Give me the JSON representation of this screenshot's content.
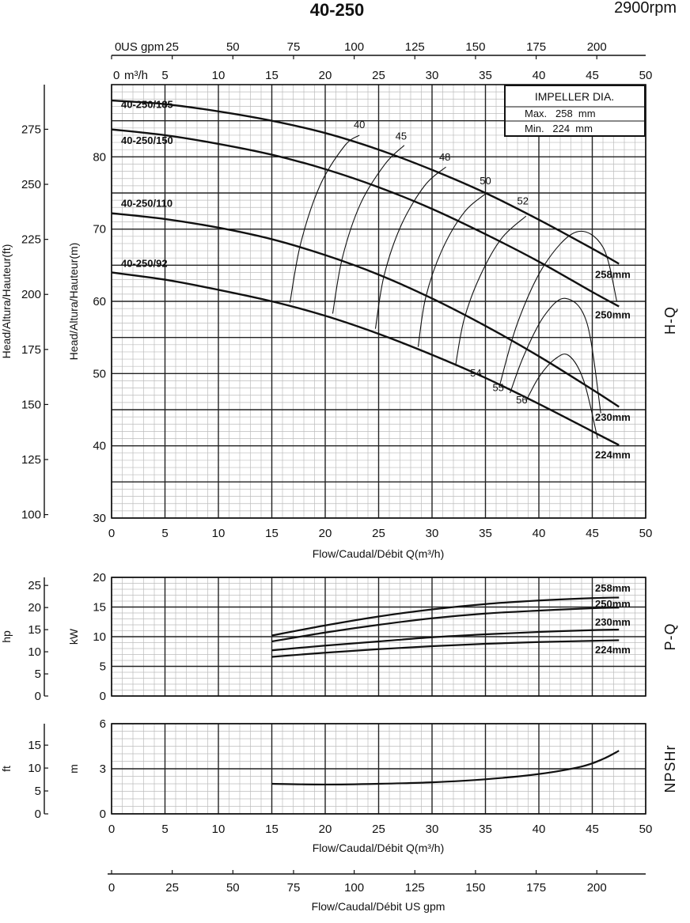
{
  "title": "40-250",
  "speed": "2900rpm",
  "impeller": {
    "title": "IMPELLER DIA.",
    "max": "Max.   258  mm",
    "min": "Min.   224  mm"
  },
  "colors": {
    "curve": "#111111",
    "grid": "#222222",
    "minor_grid": "#bcbcbc"
  },
  "chart_data": [
    {
      "type": "line",
      "name": "H-Q",
      "side_label": "H-Q",
      "x_unit_label": "m³/h",
      "top_gpm_label": "US gpm",
      "xlabel": "Flow/Caudal/Débit Q(m³/h)",
      "ylabel_m": "Head/Altura/Hauteur(m)",
      "ylabel_ft": "Head/Altura/Hauteur(ft)",
      "xlim": [
        0,
        50
      ],
      "ylim": [
        30,
        90
      ],
      "x_ticks": [
        0,
        5,
        10,
        15,
        20,
        25,
        30,
        35,
        40,
        45,
        50
      ],
      "y_ticks": [
        30,
        40,
        50,
        60,
        70,
        80
      ],
      "gpm_ticks": [
        0,
        25,
        50,
        75,
        100,
        125,
        150,
        175,
        200
      ],
      "ft_ticks": [
        100,
        125,
        150,
        175,
        200,
        225,
        250,
        275
      ],
      "series": [
        {
          "name": "258mm",
          "x": [
            0,
            5,
            10,
            15,
            20,
            25,
            30,
            35,
            40,
            45,
            47.5
          ],
          "y": [
            87.8,
            87.3,
            86.3,
            85.0,
            83.3,
            81.0,
            78.2,
            75.0,
            71.3,
            67.3,
            65.2
          ]
        },
        {
          "name": "250mm",
          "x": [
            0,
            5,
            10,
            15,
            20,
            25,
            30,
            35,
            40,
            45,
            47.5
          ],
          "y": [
            83.8,
            83.0,
            81.8,
            80.3,
            78.3,
            75.8,
            72.8,
            69.3,
            65.5,
            61.3,
            59.3
          ]
        },
        {
          "name": "230mm",
          "x": [
            0,
            5,
            10,
            15,
            20,
            25,
            30,
            35,
            40,
            45,
            47.5
          ],
          "y": [
            72.2,
            71.4,
            70.2,
            68.6,
            66.4,
            63.7,
            60.4,
            56.6,
            52.4,
            47.8,
            45.4
          ]
        },
        {
          "name": "224mm",
          "x": [
            0,
            5,
            10,
            15,
            20,
            25,
            30,
            35,
            40,
            45,
            47.5
          ],
          "y": [
            64.0,
            63.0,
            61.6,
            60.0,
            58.0,
            55.5,
            52.6,
            49.4,
            45.8,
            42.0,
            40.1
          ]
        }
      ],
      "impeller_labels": [
        "40-250/185",
        "40-250/150",
        "40-250/110",
        "40-250/92"
      ],
      "efficiency_curves": [
        {
          "label": "40",
          "x": [
            16.7,
            17.7,
            19.5,
            21.8,
            23.2
          ],
          "y": [
            59.8,
            68.0,
            76.0,
            81.5,
            83.0
          ]
        },
        {
          "label": "45",
          "x": [
            20.7,
            21.6,
            23.3,
            25.6,
            27.4
          ],
          "y": [
            58.3,
            66.0,
            73.5,
            79.0,
            81.6
          ]
        },
        {
          "label": "48",
          "x": [
            24.7,
            25.5,
            27.1,
            29.3,
            31.3
          ],
          "y": [
            56.2,
            63.5,
            70.5,
            76.0,
            78.6
          ]
        },
        {
          "label": "50",
          "x": [
            28.7,
            29.4,
            30.9,
            33.0,
            35.2
          ],
          "y": [
            53.7,
            60.5,
            67.0,
            72.3,
            75.1
          ]
        },
        {
          "label": "52",
          "x": [
            32.2,
            33.0,
            34.5,
            36.5,
            38.8
          ],
          "y": [
            51.1,
            57.5,
            63.5,
            68.7,
            71.8
          ]
        },
        {
          "label": "54",
          "x": [
            36.3,
            38.0,
            40.5,
            43.5,
            46.0,
            47.3
          ],
          "y": [
            48.2,
            57.0,
            65.0,
            69.6,
            67.5,
            60.0
          ]
        },
        {
          "label": "55",
          "x": [
            37.3,
            38.6,
            40.5,
            42.5,
            44.5,
            45.8
          ],
          "y": [
            47.3,
            52.5,
            58.0,
            60.4,
            57.0,
            44.5
          ]
        },
        {
          "label": "56",
          "x": [
            38.8,
            40.0,
            41.5,
            42.8,
            44.2,
            45.5
          ],
          "y": [
            46.2,
            49.5,
            52.0,
            52.5,
            49.0,
            41.0
          ]
        }
      ],
      "efficiency_labels": [
        "40",
        "45",
        "48",
        "50",
        "52",
        "54",
        "55",
        "56"
      ]
    },
    {
      "type": "line",
      "name": "P-Q",
      "side_label": "P-Q",
      "ylabel_kw": "kW",
      "ylabel_hp": "hp",
      "xlim": [
        0,
        50
      ],
      "ylim": [
        0,
        20
      ],
      "y_ticks": [
        0,
        5,
        10,
        15,
        20
      ],
      "hp_ticks": [
        0,
        5,
        10,
        15,
        20,
        25
      ],
      "series": [
        {
          "name": "258mm",
          "x": [
            15,
            20,
            25,
            30,
            35,
            40,
            45,
            47.5
          ],
          "y": [
            10.2,
            11.9,
            13.4,
            14.6,
            15.5,
            16.1,
            16.5,
            16.6
          ]
        },
        {
          "name": "250mm",
          "x": [
            15,
            20,
            25,
            30,
            35,
            40,
            45,
            47.5
          ],
          "y": [
            9.2,
            10.7,
            12.0,
            13.1,
            13.9,
            14.4,
            14.8,
            14.9
          ]
        },
        {
          "name": "230mm",
          "x": [
            15,
            20,
            25,
            30,
            35,
            40,
            45,
            47.5
          ],
          "y": [
            7.7,
            8.5,
            9.2,
            9.9,
            10.4,
            10.8,
            11.1,
            11.2
          ]
        },
        {
          "name": "224mm",
          "x": [
            15,
            20,
            25,
            30,
            35,
            40,
            45,
            47.5
          ],
          "y": [
            6.6,
            7.3,
            7.9,
            8.4,
            8.8,
            9.1,
            9.3,
            9.4
          ]
        }
      ],
      "series_labels": [
        "258mm",
        "250mm",
        "230mm",
        "224mm"
      ]
    },
    {
      "type": "line",
      "name": "NPSHr",
      "side_label": "NPSHr",
      "ylabel_m": "m",
      "ylabel_ft": "ft",
      "xlim": [
        0,
        50
      ],
      "ylim": [
        0,
        6
      ],
      "y_ticks": [
        0,
        3,
        6
      ],
      "ft_ticks": [
        0,
        5,
        10,
        15
      ],
      "x_ticks": [
        0,
        5,
        10,
        15,
        20,
        25,
        30,
        35,
        40,
        45,
        50
      ],
      "xlabel": "Flow/Caudal/Débit Q(m³/h)",
      "series": [
        {
          "name": "NPSHr",
          "x": [
            15,
            20,
            25,
            30,
            35,
            40,
            44,
            46,
            47.5
          ],
          "y": [
            2.0,
            1.95,
            2.0,
            2.1,
            2.3,
            2.65,
            3.15,
            3.65,
            4.2
          ]
        }
      ]
    },
    {
      "type": "axis",
      "name": "US gpm scale",
      "xlabel": "Flow/Caudal/Débit   US gpm",
      "gpm_ticks": [
        0,
        25,
        50,
        75,
        100,
        125,
        150,
        175,
        200
      ]
    }
  ]
}
